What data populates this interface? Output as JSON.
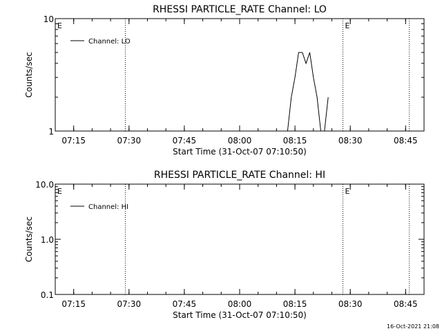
{
  "chart_data": [
    {
      "type": "line",
      "title": "RHESSI PARTICLE_RATE Channel: LO",
      "xlabel": "Start Time (31-Oct-07 07:10:50)",
      "ylabel": "Counts/sec",
      "yscale": "log",
      "ylim": [
        1,
        10
      ],
      "yticks": [
        "1",
        "10"
      ],
      "xticks": [
        "07:15",
        "07:30",
        "07:45",
        "08:00",
        "08:15",
        "08:30",
        "08:45"
      ],
      "xlim": [
        "07:10",
        "08:50"
      ],
      "legend": "top-left",
      "series": [
        {
          "name": "Channel: LO",
          "x": [
            "08:13",
            "08:14",
            "08:15",
            "08:16",
            "08:17",
            "08:18",
            "08:19",
            "08:20",
            "08:21",
            "08:22",
            "08:23",
            "08:24"
          ],
          "y": [
            1,
            2,
            3,
            5,
            5,
            4,
            5,
            3,
            2,
            1,
            1,
            2
          ]
        }
      ],
      "markers": [
        {
          "x": "07:10",
          "label": "E"
        },
        {
          "x": "07:29",
          "label": ""
        },
        {
          "x": "08:28",
          "label": "E"
        },
        {
          "x": "08:46",
          "label": ""
        }
      ]
    },
    {
      "type": "line",
      "title": "RHESSI PARTICLE_RATE Channel: HI",
      "xlabel": "Start Time (31-Oct-07 07:10:50)",
      "ylabel": "Counts/sec",
      "yscale": "log",
      "ylim": [
        0.1,
        10
      ],
      "yticks": [
        "0.1",
        "1.0",
        "10.0"
      ],
      "xticks": [
        "07:15",
        "07:30",
        "07:45",
        "08:00",
        "08:15",
        "08:30",
        "08:45"
      ],
      "xlim": [
        "07:10",
        "08:50"
      ],
      "legend": "top-left",
      "series": [
        {
          "name": "Channel: HI",
          "x": [],
          "y": []
        }
      ],
      "markers": [
        {
          "x": "07:10",
          "label": "E"
        },
        {
          "x": "07:29",
          "label": ""
        },
        {
          "x": "08:28",
          "label": "E"
        },
        {
          "x": "08:46",
          "label": ""
        }
      ]
    }
  ],
  "footer": "16-Oct-2021 21:08"
}
